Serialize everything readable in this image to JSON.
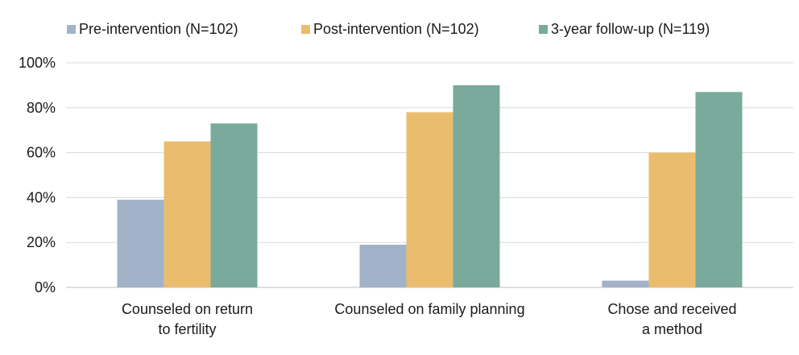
{
  "chart_data": {
    "type": "bar",
    "categories": [
      [
        "Counseled on return",
        "to fertility"
      ],
      [
        "Counseled on family planning"
      ],
      [
        "Chose and received",
        "a method"
      ]
    ],
    "series": [
      {
        "name": "Pre-intervention (N=102)",
        "color": "#a2b3c9",
        "values": [
          39,
          19,
          3
        ]
      },
      {
        "name": "Post-intervention (N=102)",
        "color": "#eabd6e",
        "values": [
          65,
          78,
          60
        ]
      },
      {
        "name": "3-year follow-up (N=119)",
        "color": "#79aa9c",
        "values": [
          73,
          90,
          87
        ]
      }
    ],
    "yticks": [
      "0%",
      "20%",
      "40%",
      "60%",
      "80%",
      "100%"
    ],
    "ylim": [
      0,
      100
    ],
    "grid": true,
    "legend_position": "top"
  }
}
